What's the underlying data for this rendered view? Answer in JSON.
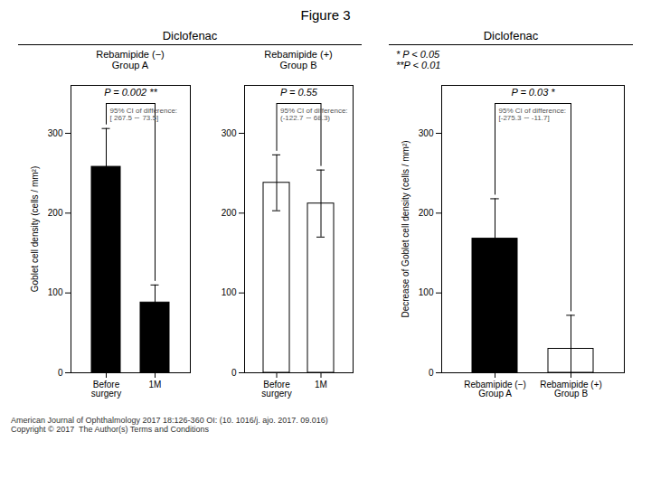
{
  "chart_data": [
    {
      "type": "bar",
      "title": "Diclofenac",
      "subtitle": "Rebamipide (−)\nGroup A",
      "ylabel": "Goblet cell density (cells / mm²)",
      "categories": [
        "Before\nsurgery",
        "1M"
      ],
      "values": [
        258,
        88
      ],
      "errors": [
        48,
        22
      ],
      "colors": [
        "#000000",
        "#000000"
      ],
      "ylim": [
        0,
        360
      ],
      "yticks": [
        0,
        100,
        200,
        300
      ],
      "annotations": [
        "P = 0.002 **",
        "95% CI of difference:\n[ 267.5 ∼ 73.5]",
        "Figure 3",
        "American Journal of Ophthalmology 2017 18:126-360 OI: (10. 1016/j. ajo. 2017. 09.016)\nCopyright © 2017  The Author(s) Terms and Conditions"
      ]
    },
    {
      "type": "bar",
      "subtitle": "Rebamipide (+)\nGroup B",
      "categories": [
        "Before\nsurgery",
        "1M"
      ],
      "values": [
        238,
        212
      ],
      "errors": [
        35,
        42
      ],
      "colors": [
        "#ffffff",
        "#ffffff"
      ],
      "ylim": [
        0,
        360
      ],
      "yticks": [
        0,
        100,
        200,
        300
      ],
      "annotations": [
        "P = 0.55",
        "95% CI of difference:\n(-122.7 ∼ 68.3)"
      ]
    },
    {
      "type": "bar",
      "title": "Diclofenac",
      "ylabel": "Decrease of Goblet cell density (cells / mm²)",
      "categories": [
        "Rebamipide (−)\nGroup A",
        "Rebamipide (+)\nGroup B"
      ],
      "values": [
        168,
        30
      ],
      "errors": [
        50,
        42
      ],
      "colors": [
        "#000000",
        "#ffffff"
      ],
      "ylim": [
        0,
        360
      ],
      "yticks": [
        0,
        100,
        200,
        300
      ],
      "annotations": [
        "P = 0.03 *",
        "95% CI of difference:\n[-275.3 ∼ -11.7]",
        "* P < 0.05",
        "**P < 0.01"
      ]
    }
  ]
}
